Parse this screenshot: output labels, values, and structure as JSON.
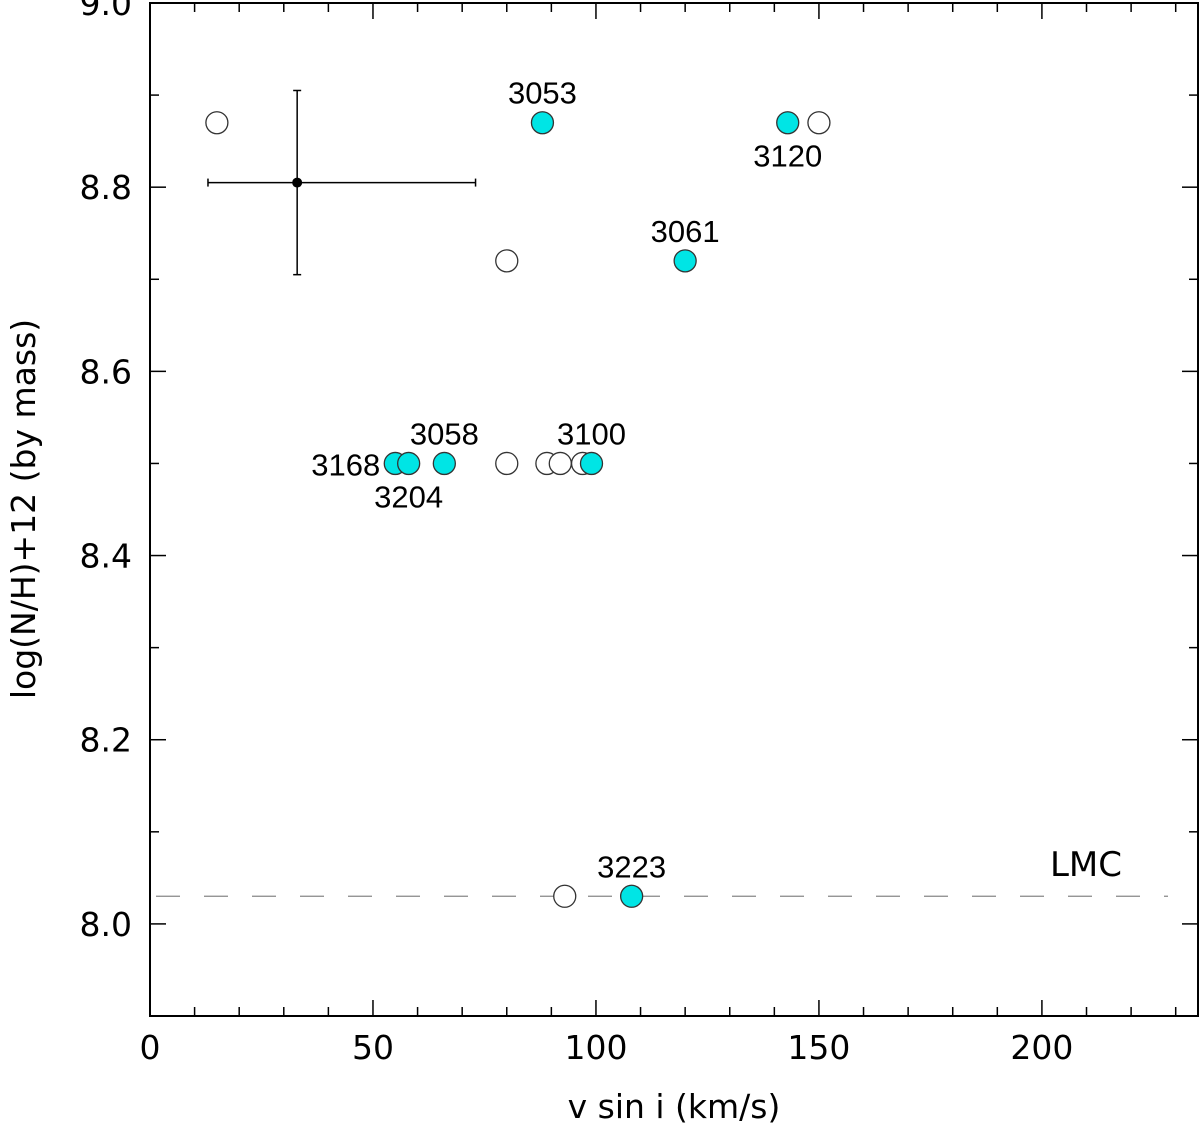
{
  "chart_data": {
    "type": "scatter",
    "title": "",
    "xlabel": "v sin i (km/s)",
    "ylabel": "log(N/H)+12 (by mass)",
    "xlim": [
      0,
      235
    ],
    "ylim": [
      7.9,
      9.0
    ],
    "xticks": [
      0,
      50,
      100,
      150,
      200
    ],
    "xtick_labels": [
      "0",
      "50",
      "100",
      "150",
      "200"
    ],
    "yticks": [
      8.0,
      8.2,
      8.4,
      8.6,
      8.8,
      9.0
    ],
    "ytick_labels": [
      "8.0",
      "8.2",
      "8.4",
      "8.6",
      "8.8",
      "9.0"
    ],
    "grid": false,
    "colors": {
      "filled": "#00e5e5",
      "open": "#ffffff",
      "edge": "#333333"
    },
    "series": [
      {
        "marker": "open-circle",
        "points": [
          {
            "x": 15,
            "y": 8.87
          },
          {
            "x": 80,
            "y": 8.72
          },
          {
            "x": 150,
            "y": 8.87
          },
          {
            "x": 80,
            "y": 8.5
          },
          {
            "x": 89,
            "y": 8.5
          },
          {
            "x": 92,
            "y": 8.5
          },
          {
            "x": 97,
            "y": 8.5
          },
          {
            "x": 93,
            "y": 8.03
          }
        ]
      },
      {
        "marker": "filled-circle",
        "points": [
          {
            "x": 88,
            "y": 8.87,
            "label": "3053"
          },
          {
            "x": 143,
            "y": 8.87,
            "label": "3120"
          },
          {
            "x": 120,
            "y": 8.72,
            "label": "3061"
          },
          {
            "x": 55,
            "y": 8.5,
            "label": "3168"
          },
          {
            "x": 58,
            "y": 8.5,
            "label": "3204"
          },
          {
            "x": 66,
            "y": 8.5,
            "label": "3058"
          },
          {
            "x": 99,
            "y": 8.5,
            "label": "3100"
          },
          {
            "x": 108,
            "y": 8.03,
            "label": "3223"
          }
        ]
      }
    ],
    "error_bar": {
      "x": 33,
      "y": 8.805,
      "x_minus": 20,
      "x_plus": 40,
      "y_minus": 0.1,
      "y_plus": 0.1
    },
    "reference_line": {
      "y": 8.03,
      "style": "dashed",
      "label": "LMC"
    }
  }
}
